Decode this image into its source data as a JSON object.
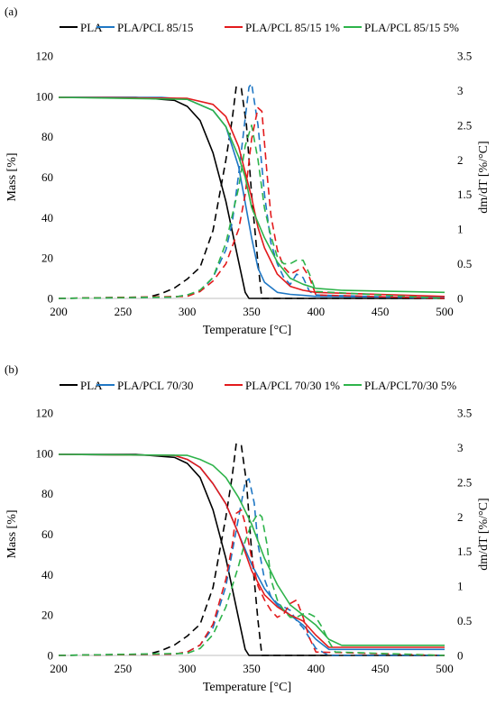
{
  "chart_data": [
    {
      "panel_label": "(a)",
      "type": "line",
      "xlabel": "Temperature [°C]",
      "ylabel": "Mass [%]",
      "y2label": "dm/dT [%/°C]",
      "xlim": [
        200,
        500
      ],
      "ylim": [
        0,
        120
      ],
      "y2lim": [
        0,
        3.5
      ],
      "xticks": [
        "200",
        "250",
        "300",
        "350",
        "400",
        "450",
        "500"
      ],
      "yticks": [
        "0",
        "20",
        "40",
        "60",
        "80",
        "100",
        "120"
      ],
      "y2ticks": [
        "0",
        "0.5",
        "1",
        "1.5",
        "2",
        "2.5",
        "3",
        "3.5"
      ],
      "grid": false,
      "legend_position": "top",
      "series": [
        {
          "name": "PLA",
          "color": "#000000",
          "mass": {
            "x": [
              200,
              260,
              290,
              300,
              310,
              320,
              330,
              340,
              345,
              348,
              500
            ],
            "y": [
              99.5,
              99.5,
              98,
              95,
              88,
              72,
              48,
              18,
              3,
              0,
              0
            ]
          },
          "dmdt": {
            "x": [
              200,
              270,
              280,
              290,
              300,
              310,
              320,
              330,
              335,
              338,
              342,
              346,
              350,
              355,
              358,
              500
            ],
            "y": [
              0,
              0.02,
              0.07,
              0.15,
              0.28,
              0.45,
              0.98,
              2.0,
              2.6,
              3.05,
              3.03,
              2.5,
              1.5,
              0.5,
              0,
              0
            ]
          }
        },
        {
          "name": "PLA/PCL 85/15",
          "color": "#1f77c4",
          "mass": {
            "x": [
              200,
              280,
              300,
              320,
              330,
              340,
              350,
              355,
              360,
              370,
              380,
              390,
              400,
              500
            ],
            "y": [
              99.5,
              99.5,
              98.5,
              93,
              85,
              65,
              30,
              15,
              8,
              3,
              2,
              1.5,
              1,
              0.5
            ]
          },
          "dmdt": {
            "x": [
              200,
              290,
              300,
              310,
              320,
              330,
              335,
              340,
              345,
              348,
              350,
              355,
              360,
              365,
              370,
              375,
              380,
              385,
              390,
              395,
              400,
              500
            ],
            "y": [
              0,
              0.02,
              0.05,
              0.1,
              0.3,
              0.7,
              1.1,
              1.8,
              2.6,
              3.05,
              3.1,
              2.5,
              1.5,
              0.8,
              0.5,
              0.3,
              0.2,
              0.35,
              0.3,
              0.1,
              0.05,
              0
            ]
          }
        },
        {
          "name": "PLA/PCL 85/15 1%",
          "color": "#e31a1c",
          "mass": {
            "x": [
              200,
              300,
              320,
              330,
              340,
              350,
              355,
              360,
              370,
              380,
              390,
              400,
              500
            ],
            "y": [
              99.5,
              99,
              96,
              90,
              75,
              50,
              35,
              25,
              12,
              6,
              4,
              3,
              1
            ]
          },
          "dmdt": {
            "x": [
              200,
              300,
              310,
              320,
              330,
              340,
              345,
              350,
              355,
              358,
              362,
              365,
              370,
              375,
              380,
              385,
              390,
              395,
              400,
              500
            ],
            "y": [
              0,
              0.03,
              0.1,
              0.25,
              0.5,
              1.0,
              1.5,
              2.3,
              2.75,
              2.7,
              1.8,
              1.2,
              0.7,
              0.45,
              0.35,
              0.4,
              0.45,
              0.3,
              0.05,
              0
            ]
          }
        },
        {
          "name": "PLA/PCL 85/15 5%",
          "color": "#2db34a",
          "mass": {
            "x": [
              200,
              300,
              320,
              330,
              340,
              345,
              350,
              360,
              370,
              380,
              390,
              400,
              420,
              500
            ],
            "y": [
              99.5,
              98.5,
              93,
              85,
              70,
              60,
              45,
              30,
              18,
              10,
              7,
              5,
              4,
              3
            ]
          },
          "dmdt": {
            "x": [
              200,
              290,
              300,
              310,
              320,
              330,
              340,
              345,
              350,
              355,
              360,
              365,
              370,
              375,
              380,
              385,
              390,
              395,
              400,
              500
            ],
            "y": [
              0,
              0.02,
              0.05,
              0.12,
              0.3,
              0.8,
              1.6,
              2.2,
              2.5,
              2.0,
              1.3,
              0.9,
              0.6,
              0.5,
              0.5,
              0.55,
              0.55,
              0.35,
              0.1,
              0
            ]
          }
        }
      ]
    },
    {
      "panel_label": "(b)",
      "type": "line",
      "xlabel": "Temperature [°C]",
      "ylabel": "Mass [%]",
      "y2label": "dm/dT [%/°C]",
      "xlim": [
        200,
        500
      ],
      "ylim": [
        0,
        120
      ],
      "y2lim": [
        0,
        3.5
      ],
      "xticks": [
        "200",
        "250",
        "300",
        "350",
        "400",
        "450",
        "500"
      ],
      "yticks": [
        "0",
        "20",
        "40",
        "60",
        "80",
        "100",
        "120"
      ],
      "y2ticks": [
        "0",
        "0.5",
        "1",
        "1.5",
        "2",
        "2.5",
        "3",
        "3.5"
      ],
      "grid": false,
      "legend_position": "top",
      "series": [
        {
          "name": "PLA",
          "color": "#000000",
          "mass": {
            "x": [
              200,
              260,
              290,
              300,
              310,
              320,
              330,
              340,
              345,
              348,
              500
            ],
            "y": [
              99.5,
              99.5,
              98,
              95,
              88,
              72,
              48,
              18,
              3,
              0,
              0
            ]
          },
          "dmdt": {
            "x": [
              200,
              270,
              280,
              290,
              300,
              310,
              320,
              330,
              335,
              338,
              342,
              346,
              350,
              355,
              358,
              500
            ],
            "y": [
              0,
              0.02,
              0.07,
              0.15,
              0.28,
              0.45,
              0.98,
              2.0,
              2.6,
              3.05,
              3.03,
              2.5,
              1.5,
              0.5,
              0,
              0
            ]
          }
        },
        {
          "name": "PLA/PCL 70/30",
          "color": "#1f77c4",
          "mass": {
            "x": [
              200,
              290,
              300,
              310,
              320,
              330,
              340,
              350,
              360,
              370,
              380,
              390,
              400,
              410,
              500
            ],
            "y": [
              99.5,
              99,
              97,
              93,
              85,
              75,
              60,
              45,
              33,
              25,
              20,
              15,
              8,
              3,
              3
            ]
          },
          "dmdt": {
            "x": [
              200,
              290,
              300,
              310,
              320,
              330,
              335,
              340,
              345,
              348,
              352,
              355,
              360,
              365,
              370,
              375,
              380,
              385,
              390,
              395,
              400,
              410,
              500
            ],
            "y": [
              0,
              0.02,
              0.05,
              0.15,
              0.4,
              1.0,
              1.5,
              2.0,
              2.5,
              2.55,
              2.2,
              1.6,
              1.1,
              0.85,
              0.75,
              0.7,
              0.65,
              0.5,
              0.4,
              0.25,
              0.1,
              0,
              0
            ]
          }
        },
        {
          "name": "PLA/PCL 70/30 1%",
          "color": "#e31a1c",
          "mass": {
            "x": [
              200,
              290,
              300,
              310,
              320,
              330,
              340,
              350,
              360,
              370,
              380,
              390,
              400,
              410,
              500
            ],
            "y": [
              99.5,
              99,
              97,
              93,
              85,
              75,
              60,
              42,
              30,
              24,
              20,
              17,
              10,
              4,
              4
            ]
          },
          "dmdt": {
            "x": [
              200,
              290,
              300,
              310,
              320,
              330,
              335,
              338,
              342,
              345,
              350,
              355,
              360,
              365,
              370,
              375,
              380,
              385,
              390,
              395,
              400,
              500
            ],
            "y": [
              0,
              0.02,
              0.05,
              0.15,
              0.45,
              1.1,
              1.6,
              2.05,
              2.1,
              1.9,
              1.4,
              1.0,
              0.8,
              0.65,
              0.55,
              0.6,
              0.75,
              0.8,
              0.55,
              0.25,
              0.05,
              0
            ]
          }
        },
        {
          "name": "PLA/PCL70/30 5%",
          "color": "#2db34a",
          "mass": {
            "x": [
              200,
              300,
              310,
              320,
              330,
              340,
              350,
              360,
              370,
              380,
              390,
              400,
              410,
              420,
              500
            ],
            "y": [
              99.5,
              99,
              97,
              94,
              88,
              78,
              65,
              48,
              35,
              25,
              20,
              15,
              8,
              5,
              5
            ]
          },
          "dmdt": {
            "x": [
              200,
              300,
              310,
              320,
              330,
              340,
              345,
              350,
              355,
              358,
              362,
              365,
              370,
              375,
              380,
              385,
              390,
              395,
              400,
              405,
              410,
              415,
              500
            ],
            "y": [
              0,
              0.03,
              0.1,
              0.3,
              0.7,
              1.3,
              1.65,
              1.9,
              2.05,
              2.0,
              1.6,
              1.1,
              0.8,
              0.65,
              0.55,
              0.55,
              0.6,
              0.6,
              0.55,
              0.4,
              0.2,
              0.05,
              0
            ]
          }
        }
      ]
    }
  ]
}
